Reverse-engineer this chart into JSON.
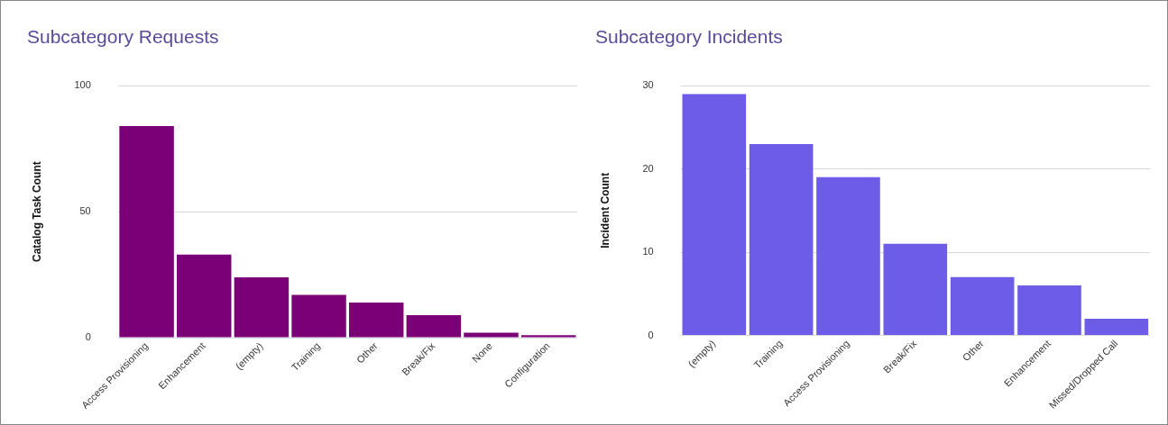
{
  "chart_data": [
    {
      "type": "bar",
      "title": "Subcategory Requests",
      "ylabel": "Catalog Task Count",
      "categories": [
        "Access Provisioning",
        "Enhancement",
        "(empty)",
        "Training",
        "Other",
        "Break/Fix",
        "None",
        "Configuration"
      ],
      "values": [
        84,
        33,
        24,
        17,
        14,
        9,
        2,
        1
      ],
      "color": "#7b0077",
      "ylim": [
        0,
        100
      ],
      "yticks": [
        0,
        50,
        100
      ],
      "grid": "y",
      "legend": false
    },
    {
      "type": "bar",
      "title": "Subcategory Incidents",
      "ylabel": "Incident Count",
      "categories": [
        "(empty)",
        "Training",
        "Access Provisioning",
        "Break/Fix",
        "Other",
        "Enhancement",
        "Missed/Dropped Call"
      ],
      "values": [
        29,
        23,
        19,
        11,
        7,
        6,
        2
      ],
      "color": "#6c5ce7",
      "ylim": [
        0,
        30
      ],
      "yticks": [
        0,
        10,
        20,
        30
      ],
      "grid": "y",
      "legend": false
    }
  ]
}
